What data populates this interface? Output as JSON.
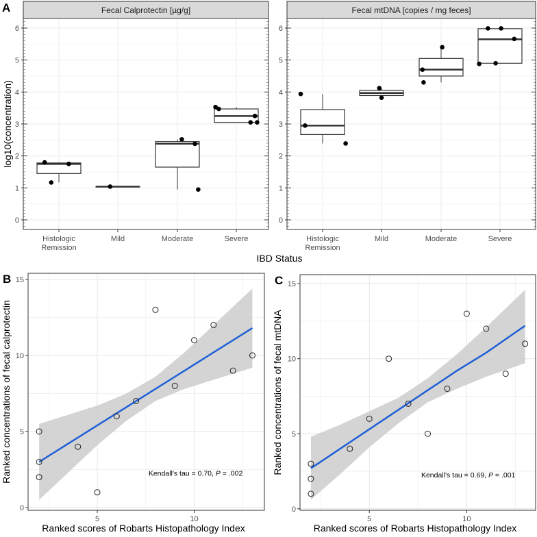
{
  "chart_data": [
    {
      "panel": "A",
      "type": "box",
      "facets": [
        {
          "strip": "Fecal Calprotectin [µg/g]",
          "boxes": [
            {
              "category": "Histologic Remission",
              "lower": 1.17,
              "q1": 1.45,
              "median": 1.75,
              "q3": 1.78,
              "upper": 1.8,
              "points": [
                1.8,
                1.75,
                1.17
              ]
            },
            {
              "category": "Mild",
              "lower": 1.04,
              "q1": 1.04,
              "median": 1.04,
              "q3": 1.04,
              "upper": 1.04,
              "points": [
                1.04
              ]
            },
            {
              "category": "Moderate",
              "lower": 0.95,
              "q1": 1.65,
              "median": 2.38,
              "q3": 2.45,
              "upper": 2.52,
              "points": [
                2.52,
                2.38,
                0.95
              ]
            },
            {
              "category": "Severe",
              "lower": 3.05,
              "q1": 3.05,
              "median": 3.25,
              "q3": 3.47,
              "upper": 3.53,
              "points": [
                3.53,
                3.47,
                3.25,
                3.05,
                3.05
              ]
            }
          ]
        },
        {
          "strip": "Fecal mtDNA [copies / mg feces]",
          "boxes": [
            {
              "category": "Histologic Remission",
              "lower": 2.39,
              "q1": 2.67,
              "median": 2.95,
              "q3": 3.45,
              "upper": 3.94,
              "points": [
                3.94,
                2.95,
                2.39
              ]
            },
            {
              "category": "Mild",
              "lower": 3.82,
              "q1": 3.89,
              "median": 3.97,
              "q3": 4.05,
              "upper": 4.12,
              "points": [
                4.12,
                3.82
              ]
            },
            {
              "category": "Moderate",
              "lower": 4.3,
              "q1": 4.5,
              "median": 4.7,
              "q3": 5.05,
              "upper": 5.4,
              "points": [
                4.7,
                4.3,
                5.4
              ]
            },
            {
              "category": "Severe",
              "lower": 4.88,
              "q1": 4.9,
              "median": 5.65,
              "q3": 5.98,
              "upper": 5.99,
              "points": [
                4.88,
                5.99,
                4.9,
                5.99,
                5.66
              ]
            }
          ]
        }
      ],
      "x_tick_labels": [
        [
          "Histologic",
          "Remission"
        ],
        [
          "Mild"
        ],
        [
          "Moderate"
        ],
        [
          "Severe"
        ]
      ],
      "xlabel": "IBD Status",
      "ylabel": "log10(concentration)",
      "yticks": [
        "0",
        "1",
        "2",
        "3",
        "4",
        "5",
        "6"
      ],
      "ylim": [
        -0.27,
        6.3
      ],
      "grid": true
    },
    {
      "panel": "B",
      "type": "scatter",
      "x": [
        2,
        2,
        2,
        4,
        5,
        6,
        7,
        8,
        9,
        10,
        11,
        12,
        13
      ],
      "y": [
        5,
        3,
        2,
        4,
        1,
        6,
        7,
        13,
        8,
        11,
        12,
        9,
        10
      ],
      "fit": {
        "x": [
          2,
          3.5,
          5,
          6.5,
          8,
          9.5,
          11,
          13
        ],
        "y": [
          3,
          4.2,
          5.4,
          6.6,
          7.8,
          9.0,
          10.2,
          11.8
        ],
        "lower": [
          0.5,
          2.3,
          4.1,
          5.7,
          7.0,
          7.8,
          8.4,
          9.2
        ],
        "upper": [
          5.5,
          6.1,
          6.7,
          7.5,
          8.6,
          10.2,
          12.0,
          14.4
        ]
      },
      "line_color": "#1f5fd6",
      "band_color": "#cccccc",
      "annotation": {
        "prefix": "Kendall's tau = 0.70, ",
        "p_label": "P",
        "suffix": " = .002"
      },
      "xlabel": "Ranked scores of Robarts Histopathology Index",
      "ylabel": "Ranked concentrations of fecal calprotectin",
      "xticks": [
        "5",
        "10"
      ],
      "yticks": [
        "0",
        "5",
        "10",
        "15"
      ],
      "xlim": [
        1.43,
        13.62
      ],
      "ylim": [
        -0.18,
        15.4
      ],
      "grid": true
    },
    {
      "panel": "C",
      "type": "scatter",
      "x": [
        2,
        2,
        2,
        4,
        5,
        6,
        7,
        8,
        9,
        10,
        11,
        12,
        13
      ],
      "y": [
        3,
        2,
        1,
        4,
        6,
        10,
        7,
        5,
        8,
        13,
        12,
        9,
        11
      ],
      "fit": {
        "x": [
          2,
          3.5,
          5,
          6.5,
          8,
          9.5,
          11,
          13
        ],
        "y": [
          2.7,
          4.0,
          5.3,
          6.6,
          7.9,
          9.2,
          10.4,
          12.2
        ],
        "lower": [
          0.6,
          2.3,
          4.1,
          5.7,
          7.1,
          8.0,
          8.8,
          9.7
        ],
        "upper": [
          4.8,
          5.6,
          6.5,
          7.4,
          8.7,
          10.3,
          12.1,
          14.6
        ]
      },
      "line_color": "#1f5fd6",
      "band_color": "#cccccc",
      "annotation": {
        "prefix": "Kendall's tau = 0.69, ",
        "p_label": "P",
        "suffix": " = .001"
      },
      "xlabel": "Ranked scores of Robarts Histopathology Index",
      "ylabel": "Ranked concentrations of fecal mtDNA",
      "xticks": [
        "5",
        "10"
      ],
      "yticks": [
        "0",
        "5",
        "10",
        "15"
      ],
      "xlim": [
        1.44,
        13.54
      ],
      "ylim": [
        -0.1,
        15.6
      ],
      "grid": true
    }
  ]
}
